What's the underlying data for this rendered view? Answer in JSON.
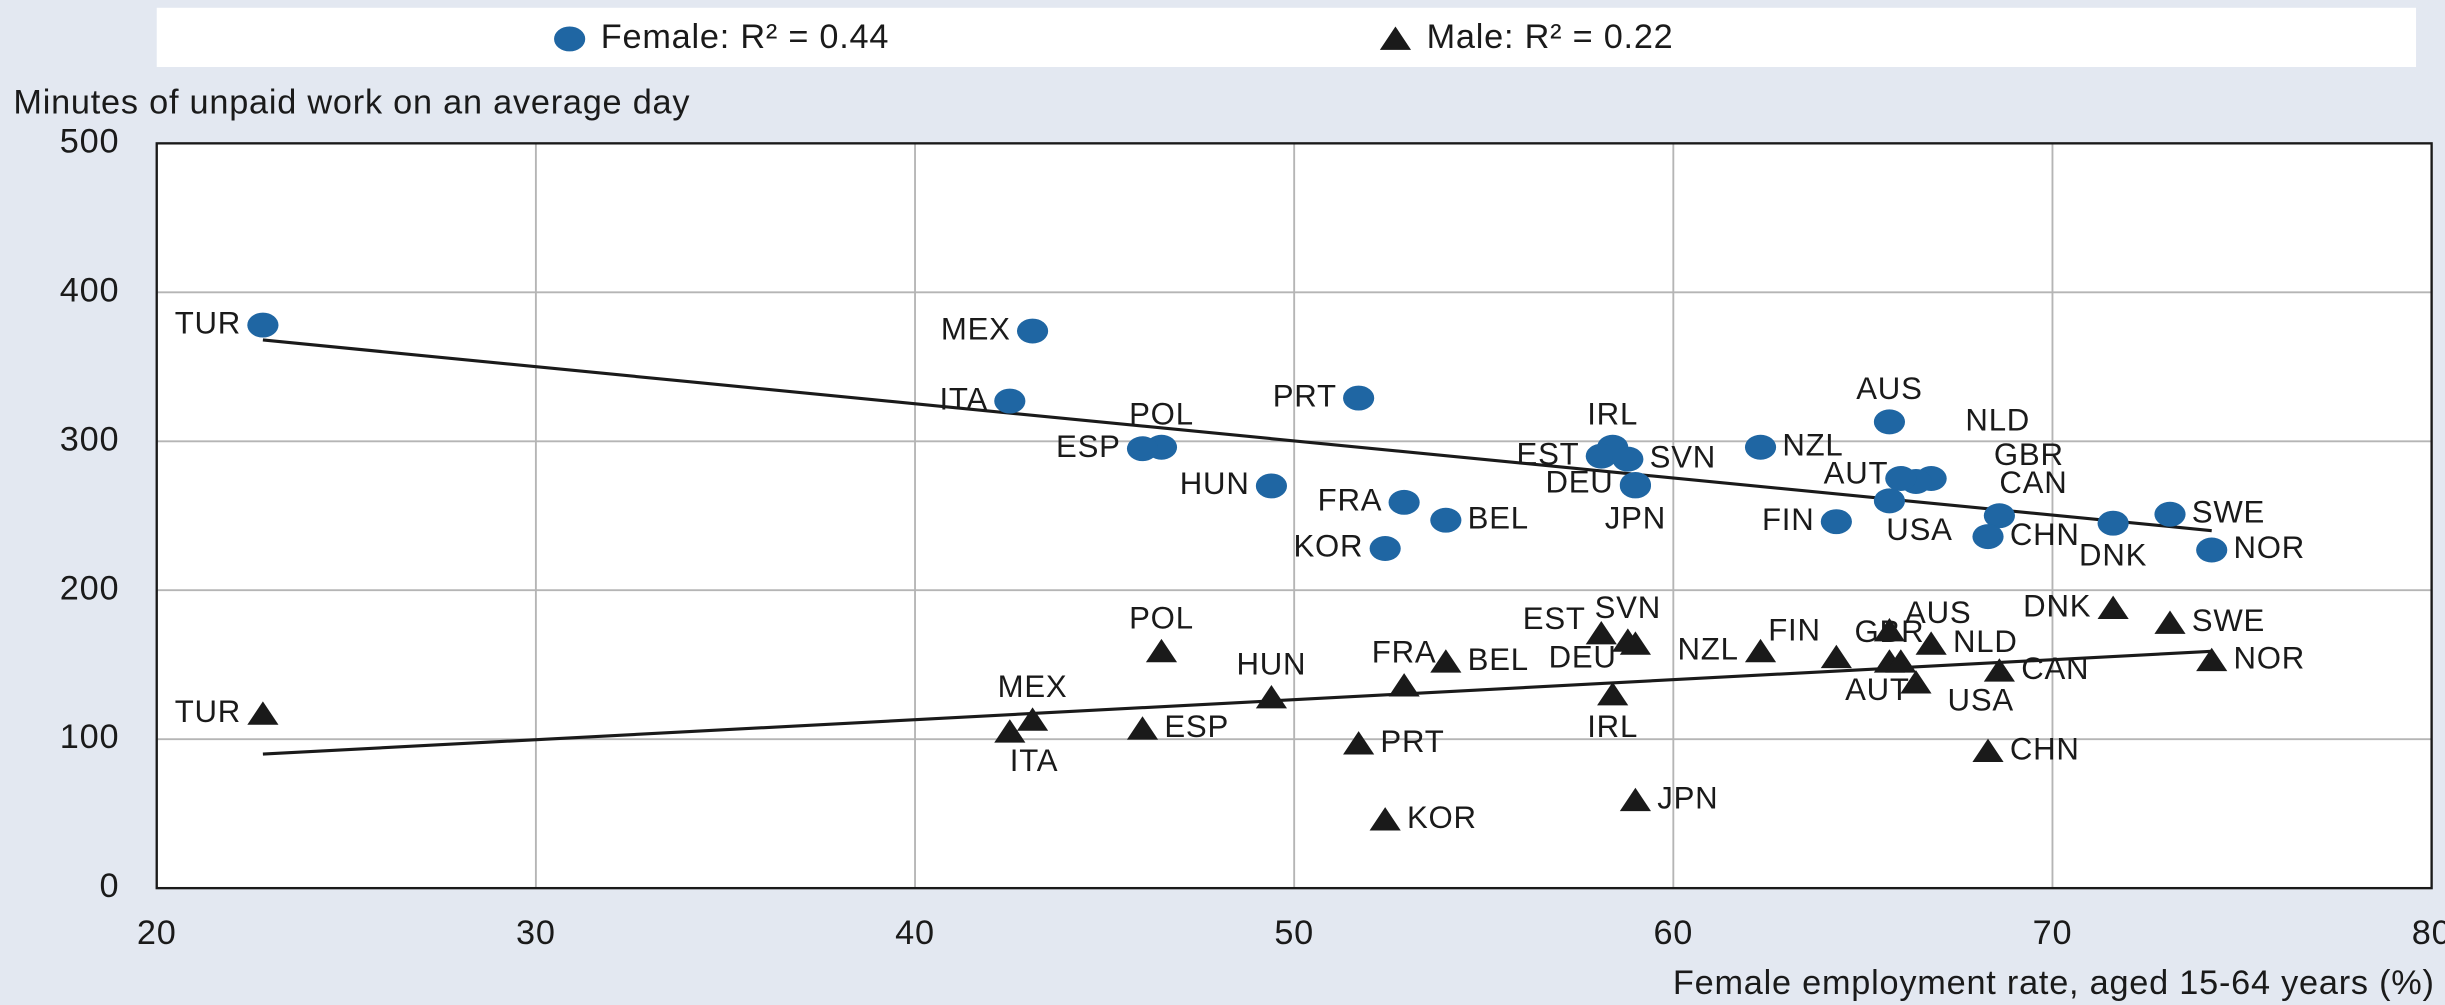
{
  "chart_data": {
    "type": "scatter",
    "y_label": "Minutes of unpaid work on an average day",
    "x_label": "Female employment rate, aged 15-64 years (%)",
    "xlim": [
      20,
      80
    ],
    "xticks": [
      20,
      30,
      40,
      50,
      60,
      70,
      80
    ],
    "ylim": [
      0,
      500
    ],
    "yticks": [
      0,
      100,
      200,
      300,
      400,
      500
    ],
    "grid": true,
    "legend": "top",
    "series": [
      {
        "name": "Female: R² = 0.44",
        "color": "#1f66a3",
        "marker": "circle",
        "labels": [
          "TUR",
          "MEX",
          "ITA",
          "POL",
          "ESP",
          "PRT",
          "HUN",
          "FRA",
          "BEL",
          "KOR",
          "IRL",
          "EST",
          "SVN",
          "DEU",
          "JPN",
          "NZL",
          "AUS",
          "NLD",
          "GBR",
          "AUT",
          "USA",
          "FIN",
          "CAN",
          "CHN",
          "DNK",
          "SWE",
          "NOR"
        ],
        "x": [
          22.8,
          43.1,
          42.5,
          46.5,
          46.0,
          51.7,
          49.4,
          52.9,
          54.0,
          52.4,
          58.4,
          58.1,
          58.8,
          59.0,
          59.0,
          62.3,
          65.7,
          66.8,
          66.4,
          66.0,
          65.7,
          64.3,
          68.6,
          68.3,
          71.6,
          73.1,
          74.2
        ],
        "values": [
          378,
          374,
          327,
          296,
          295,
          329,
          270,
          259,
          247,
          228,
          296,
          290,
          288,
          271,
          270,
          296,
          313,
          275,
          273,
          275,
          260,
          246,
          250,
          236,
          245,
          251,
          227
        ],
        "trend": {
          "x": [
            22.8,
            74.2
          ],
          "y": [
            368,
            240
          ]
        }
      },
      {
        "name": "Male: R² = 0.22",
        "color": "#1a1a1a",
        "marker": "triangle",
        "labels": [
          "TUR",
          "MEX",
          "ITA",
          "POL",
          "ESP",
          "PRT",
          "HUN",
          "FRA",
          "BEL",
          "KOR",
          "EST",
          "SVN",
          "DEU",
          "IRL",
          "JPN",
          "NZL",
          "FIN",
          "GBR",
          "AUS",
          "NLD",
          "AUT",
          "USA",
          "CAN",
          "CHN",
          "DNK",
          "SWE",
          "NOR"
        ],
        "x": [
          22.8,
          43.1,
          42.5,
          46.5,
          46.0,
          51.7,
          49.4,
          52.9,
          54.0,
          52.4,
          58.1,
          58.8,
          59.0,
          58.4,
          59.0,
          62.3,
          64.3,
          65.7,
          65.7,
          66.8,
          66.4,
          66.0,
          68.6,
          68.3,
          71.6,
          73.1,
          74.2
        ],
        "values": [
          117,
          113,
          105,
          159,
          107,
          97,
          128,
          136,
          152,
          46,
          171,
          166,
          164,
          130,
          59,
          159,
          155,
          152,
          173,
          164,
          138,
          152,
          146,
          92,
          188,
          178,
          153
        ],
        "trend": {
          "x": [
            22.8,
            74.2
          ],
          "y": [
            90,
            159
          ]
        }
      }
    ]
  }
}
